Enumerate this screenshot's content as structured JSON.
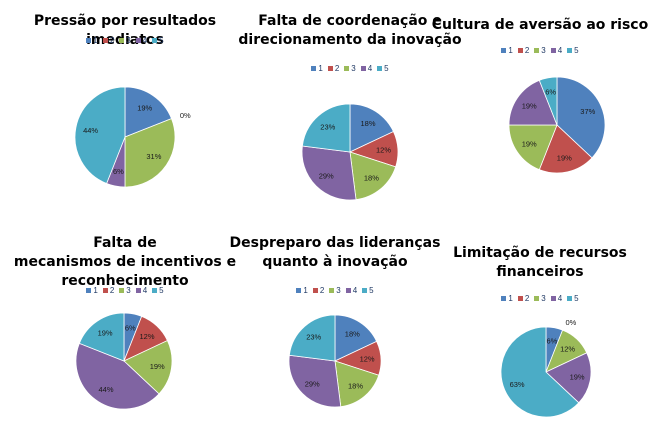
{
  "colors": [
    "#4f81bd",
    "#c0504d",
    "#9bbb59",
    "#8064a2",
    "#4bacc6"
  ],
  "legend_labels": [
    "1",
    "2",
    "3",
    "4",
    "5"
  ],
  "chart_data": [
    {
      "type": "pie",
      "title": "Pressão por resultados imediatos",
      "categories": [
        "1",
        "2",
        "3",
        "4",
        "5"
      ],
      "values": [
        19,
        0,
        31,
        6,
        44
      ],
      "labels": [
        "19%",
        "0%",
        "31%",
        "6%",
        "44%"
      ],
      "legend": "top"
    },
    {
      "type": "pie",
      "title": "Falta de coordenação e direcionamento da inovação",
      "categories": [
        "1",
        "2",
        "3",
        "4",
        "5"
      ],
      "values": [
        18,
        12,
        18,
        29,
        23
      ],
      "labels": [
        "18%",
        "12%",
        "18%",
        "29%",
        "23%"
      ],
      "legend": "top"
    },
    {
      "type": "pie",
      "title": "Cultura de aversão ao risco",
      "categories": [
        "1",
        "2",
        "3",
        "4",
        "5"
      ],
      "values": [
        37,
        19,
        19,
        19,
        6
      ],
      "labels": [
        "37%",
        "19%",
        "19%",
        "19%",
        "6%"
      ],
      "legend": "top"
    },
    {
      "type": "pie",
      "title": "Falta de mecanismos de incentivos e reconhecimento",
      "categories": [
        "1",
        "2",
        "3",
        "4",
        "5"
      ],
      "values": [
        6,
        12,
        19,
        44,
        19
      ],
      "labels": [
        "6%",
        "12%",
        "19%",
        "44%",
        "19%"
      ],
      "legend": "top"
    },
    {
      "type": "pie",
      "title": "Despreparo das lideranças quanto à inovação",
      "categories": [
        "1",
        "2",
        "3",
        "4",
        "5"
      ],
      "values": [
        18,
        12,
        18,
        29,
        23
      ],
      "labels": [
        "18%",
        "12%",
        "18%",
        "29%",
        "23%"
      ],
      "legend": "top"
    },
    {
      "type": "pie",
      "title": "Limitação de recursos financeiros",
      "categories": [
        "1",
        "2",
        "3",
        "4",
        "5"
      ],
      "values": [
        6,
        0,
        12,
        19,
        63
      ],
      "labels": [
        "6%",
        "0%",
        "12%",
        "19%",
        "63%"
      ],
      "legend": "top"
    }
  ]
}
